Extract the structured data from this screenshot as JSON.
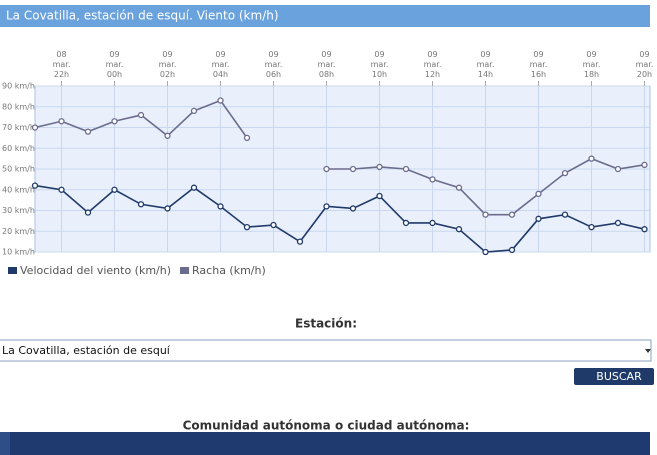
{
  "header": {
    "title": "La Covatilla, estación de esquí. Viento (km/h)"
  },
  "chart_data": {
    "type": "line",
    "categories": [
      null,
      "08 mar. 22h",
      null,
      "09 mar. 00h",
      null,
      "09 mar. 02h",
      null,
      "09 mar. 04h",
      null,
      "09 mar. 06h",
      null,
      "09 mar. 08h",
      null,
      "09 mar. 10h",
      null,
      "09 mar. 12h",
      null,
      "09 mar. 14h",
      null,
      "09 mar. 16h",
      null,
      "09 mar. 18h",
      null,
      "09 mar. 20h"
    ],
    "series": [
      {
        "name": "Velocidad del viento (km/h)",
        "color": "#1f3a68",
        "values": [
          42,
          40,
          29,
          40,
          33,
          31,
          41,
          32,
          22,
          23,
          15,
          32,
          31,
          37,
          24,
          24,
          21,
          10,
          11,
          26,
          28,
          22,
          24,
          21
        ]
      },
      {
        "name": "Racha (km/h)",
        "color": "#6b6b8e",
        "values": [
          70,
          73,
          68,
          73,
          76,
          66,
          78,
          83,
          65,
          null,
          null,
          50,
          50,
          51,
          50,
          45,
          41,
          28,
          28,
          38,
          48,
          55,
          50,
          52
        ]
      }
    ],
    "ylim": [
      10,
      90
    ],
    "yticks": [
      {
        "value": 10,
        "label": "10 km/h"
      },
      {
        "value": 20,
        "label": "20 km/h"
      },
      {
        "value": 30,
        "label": "30 km/h"
      },
      {
        "value": 40,
        "label": "40 km/h"
      },
      {
        "value": 50,
        "label": "50 km/h"
      },
      {
        "value": 60,
        "label": "60 km/h"
      },
      {
        "value": 70,
        "label": "70 km/h"
      },
      {
        "value": 80,
        "label": "80 km/h"
      },
      {
        "value": 90,
        "label": "90 km/h"
      }
    ],
    "grid": true
  },
  "form": {
    "station_label": "Estación:",
    "station_value": "La Covatilla, estación de esquí",
    "button": "BUSCAR",
    "community_label": "Comunidad autónoma o ciudad autónoma:"
  }
}
